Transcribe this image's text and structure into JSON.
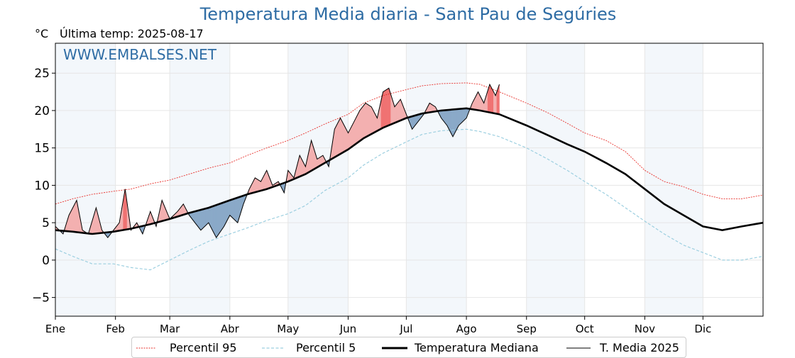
{
  "header": {
    "title": "Temperatura Media diaria - Sant Pau de Segúries",
    "unit": "°C",
    "last_temp": "Última temp: 2025-08-17",
    "watermark": "WWW.EMBALSES.NET"
  },
  "colors": {
    "title": "#2e6ca4",
    "p95": "#e8312c",
    "p5": "#9ccfe0",
    "median": "#000000",
    "media2025": "#000000",
    "above_fill": "#f3b0b0",
    "above_strong_fill": "#f07272",
    "below_fill": "#8aa9c8",
    "band": "#f3f7fb"
  },
  "chart_data": {
    "type": "line",
    "title": "Temperatura Media diaria - Sant Pau de Segúries",
    "ylabel": "°C",
    "ylim": [
      -7.5,
      29
    ],
    "xlim": [
      1,
      366
    ],
    "yticks": [
      -5,
      0,
      5,
      10,
      15,
      20,
      25
    ],
    "grid": true,
    "legend_position": "bottom",
    "months": [
      {
        "label": "Ene",
        "day": 1
      },
      {
        "label": "Feb",
        "day": 32
      },
      {
        "label": "Mar",
        "day": 60
      },
      {
        "label": "Abr",
        "day": 91
      },
      {
        "label": "May",
        "day": 121
      },
      {
        "label": "Jun",
        "day": 152
      },
      {
        "label": "Jul",
        "day": 182
      },
      {
        "label": "Ago",
        "day": 213
      },
      {
        "label": "Sep",
        "day": 244
      },
      {
        "label": "Oct",
        "day": 274
      },
      {
        "label": "Nov",
        "day": 305
      },
      {
        "label": "Dic",
        "day": 335
      }
    ],
    "series": [
      {
        "name": "Percentil 95",
        "x": [
          1,
          10,
          20,
          31,
          40,
          50,
          60,
          70,
          80,
          91,
          100,
          110,
          121,
          130,
          140,
          152,
          160,
          170,
          182,
          190,
          200,
          213,
          220,
          230,
          244,
          255,
          265,
          274,
          285,
          295,
          305,
          315,
          325,
          335,
          345,
          355,
          366
        ],
        "values": [
          7.5,
          8.2,
          8.8,
          9.2,
          9.5,
          10.2,
          10.7,
          11.5,
          12.3,
          13,
          14,
          15,
          16,
          17,
          18.2,
          19.5,
          21,
          22,
          22.8,
          23.3,
          23.6,
          23.7,
          23.5,
          22.5,
          21,
          19.7,
          18.3,
          17,
          16,
          14.5,
          12,
          10.5,
          9.8,
          8.8,
          8.2,
          8.2,
          8.7
        ]
      },
      {
        "name": "Percentil 5",
        "x": [
          1,
          10,
          20,
          31,
          40,
          50,
          60,
          70,
          80,
          91,
          100,
          110,
          121,
          130,
          140,
          152,
          160,
          170,
          182,
          190,
          200,
          213,
          220,
          230,
          244,
          255,
          265,
          274,
          285,
          295,
          305,
          315,
          325,
          335,
          345,
          355,
          366
        ],
        "values": [
          1.5,
          0.5,
          -0.5,
          -0.5,
          -1,
          -1.3,
          0,
          1.3,
          2.5,
          3.5,
          4.3,
          5.3,
          6.2,
          7.3,
          9.3,
          11,
          12.7,
          14.3,
          15.8,
          16.8,
          17.3,
          17.5,
          17.2,
          16.5,
          15,
          13.5,
          12,
          10.5,
          8.8,
          7,
          5.2,
          3.5,
          2,
          1,
          0,
          0,
          0.5
        ]
      },
      {
        "name": "Temperatura Mediana",
        "x": [
          1,
          10,
          20,
          31,
          40,
          50,
          60,
          70,
          80,
          91,
          100,
          110,
          121,
          130,
          140,
          152,
          160,
          170,
          182,
          190,
          200,
          213,
          220,
          230,
          244,
          255,
          265,
          274,
          285,
          295,
          305,
          315,
          325,
          335,
          345,
          355,
          366
        ],
        "values": [
          4,
          3.8,
          3.5,
          3.8,
          4.2,
          4.8,
          5.5,
          6.3,
          7,
          8,
          8.8,
          9.5,
          10.5,
          11.5,
          13,
          14.8,
          16.3,
          17.7,
          19,
          19.6,
          20,
          20.3,
          20,
          19.5,
          18,
          16.7,
          15.5,
          14.5,
          13,
          11.5,
          9.5,
          7.5,
          6,
          4.5,
          4,
          4.5,
          5
        ]
      },
      {
        "name": "T. Media 2025",
        "x": [
          1,
          5,
          8,
          12,
          15,
          18,
          22,
          25,
          28,
          31,
          34,
          37,
          40,
          43,
          46,
          50,
          53,
          56,
          60,
          64,
          67,
          70,
          73,
          76,
          80,
          84,
          88,
          91,
          95,
          98,
          101,
          104,
          107,
          110,
          113,
          116,
          119,
          121,
          124,
          127,
          130,
          133,
          136,
          139,
          142,
          145,
          148,
          152,
          155,
          158,
          161,
          164,
          167,
          170,
          173,
          176,
          179,
          182,
          185,
          188,
          191,
          194,
          197,
          200,
          203,
          206,
          209,
          213,
          216,
          219,
          222,
          225,
          228,
          230
        ],
        "values": [
          4.5,
          3.5,
          6,
          8,
          4,
          3.5,
          7,
          4,
          3,
          4,
          5,
          9.5,
          4,
          5,
          3.5,
          6.5,
          4.5,
          8,
          5.5,
          6.5,
          7.5,
          6,
          5,
          4,
          5,
          3,
          4.5,
          6,
          5,
          7.5,
          9.5,
          11,
          10.5,
          12,
          10,
          10.5,
          9,
          12,
          11,
          14,
          12.5,
          16,
          13.5,
          14,
          12.5,
          17.5,
          19,
          17,
          18.5,
          20,
          21,
          20.5,
          19,
          22.5,
          23,
          20.5,
          21.5,
          19.5,
          17.5,
          18.5,
          19.5,
          21,
          20.5,
          19,
          18,
          16.5,
          18,
          19,
          21,
          22.5,
          21,
          23.5,
          22,
          23.5
        ]
      }
    ]
  },
  "legend": {
    "p95": "Percentil 95",
    "p5": "Percentil 5",
    "median": "Temperatura Mediana",
    "media2025": "T. Media 2025"
  }
}
